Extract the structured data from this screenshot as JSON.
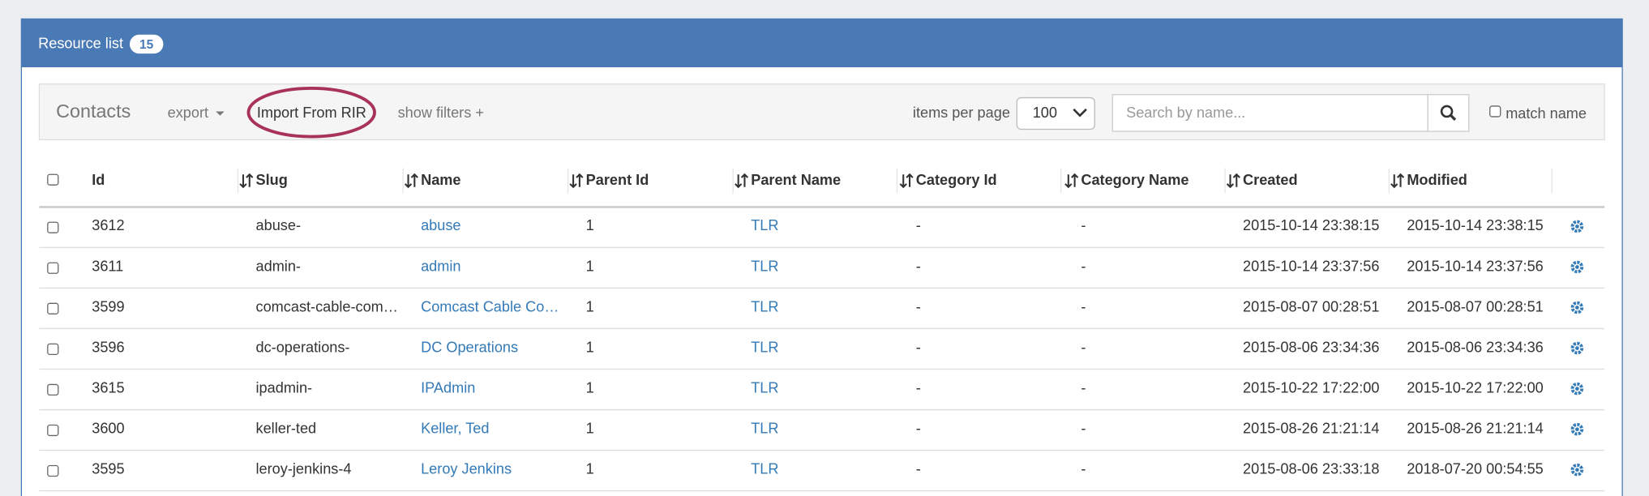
{
  "header": {
    "title": "Resource list",
    "count": "15"
  },
  "toolbar": {
    "title": "Contacts",
    "export": "export",
    "import": "Import From RIR",
    "show_filters": "show filters +",
    "items_per_page_label": "items per page",
    "items_per_page": "100",
    "search_placeholder": "Search by name...",
    "match_name": "match name"
  },
  "table": {
    "columns": [
      "Id",
      "Slug",
      "Name",
      "Parent Id",
      "Parent Name",
      "Category Id",
      "Category Name",
      "Created",
      "Modified"
    ],
    "rows": [
      [
        "3612",
        "abuse-",
        "abuse",
        "1",
        "TLR",
        "-",
        "-",
        "2015-10-14 23:38:15",
        "2015-10-14 23:38:15"
      ],
      [
        "3611",
        "admin-",
        "admin",
        "1",
        "TLR",
        "-",
        "-",
        "2015-10-14 23:37:56",
        "2015-10-14 23:37:56"
      ],
      [
        "3599",
        "comcast-cable-com…",
        "Comcast Cable Co…",
        "1",
        "TLR",
        "-",
        "-",
        "2015-08-07 00:28:51",
        "2015-08-07 00:28:51"
      ],
      [
        "3596",
        "dc-operations-",
        "DC Operations",
        "1",
        "TLR",
        "-",
        "-",
        "2015-08-06 23:34:36",
        "2015-08-06 23:34:36"
      ],
      [
        "3615",
        "ipadmin-",
        "IPAdmin",
        "1",
        "TLR",
        "-",
        "-",
        "2015-10-22 17:22:00",
        "2015-10-22 17:22:00"
      ],
      [
        "3600",
        "keller-ted",
        "Keller, Ted",
        "1",
        "TLR",
        "-",
        "-",
        "2015-08-26 21:21:14",
        "2015-08-26 21:21:14"
      ],
      [
        "3595",
        "leroy-jenkins-4",
        "Leroy Jenkins",
        "1",
        "TLR",
        "-",
        "-",
        "2015-08-06 23:33:18",
        "2018-07-20 00:54:55"
      ]
    ]
  }
}
